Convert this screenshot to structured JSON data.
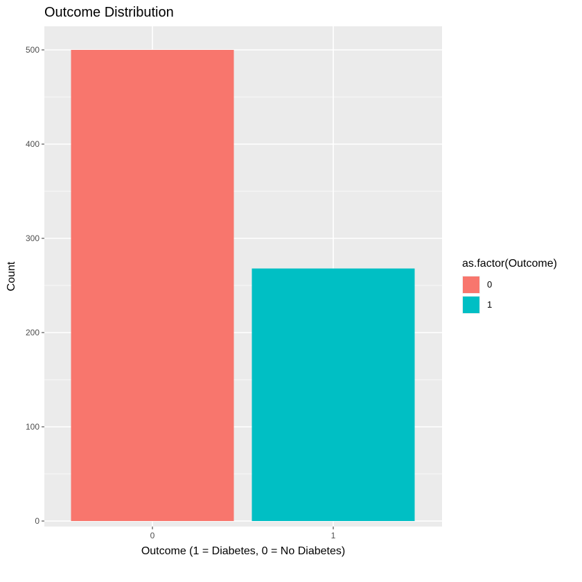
{
  "chart_data": {
    "type": "bar",
    "title": "Outcome Distribution",
    "xlabel": "Outcome (1 = Diabetes, 0 = No Diabetes)",
    "ylabel": "Count",
    "categories": [
      "0",
      "1"
    ],
    "values": [
      500,
      268
    ],
    "colors": [
      "#F8766D",
      "#00BFC4"
    ],
    "ylim": [
      0,
      528
    ],
    "yticks": [
      0,
      100,
      200,
      300,
      400,
      500
    ],
    "grid": true,
    "legend": {
      "title": "as.factor(Outcome)",
      "placement": "right",
      "entries": [
        "0",
        "1"
      ]
    }
  }
}
